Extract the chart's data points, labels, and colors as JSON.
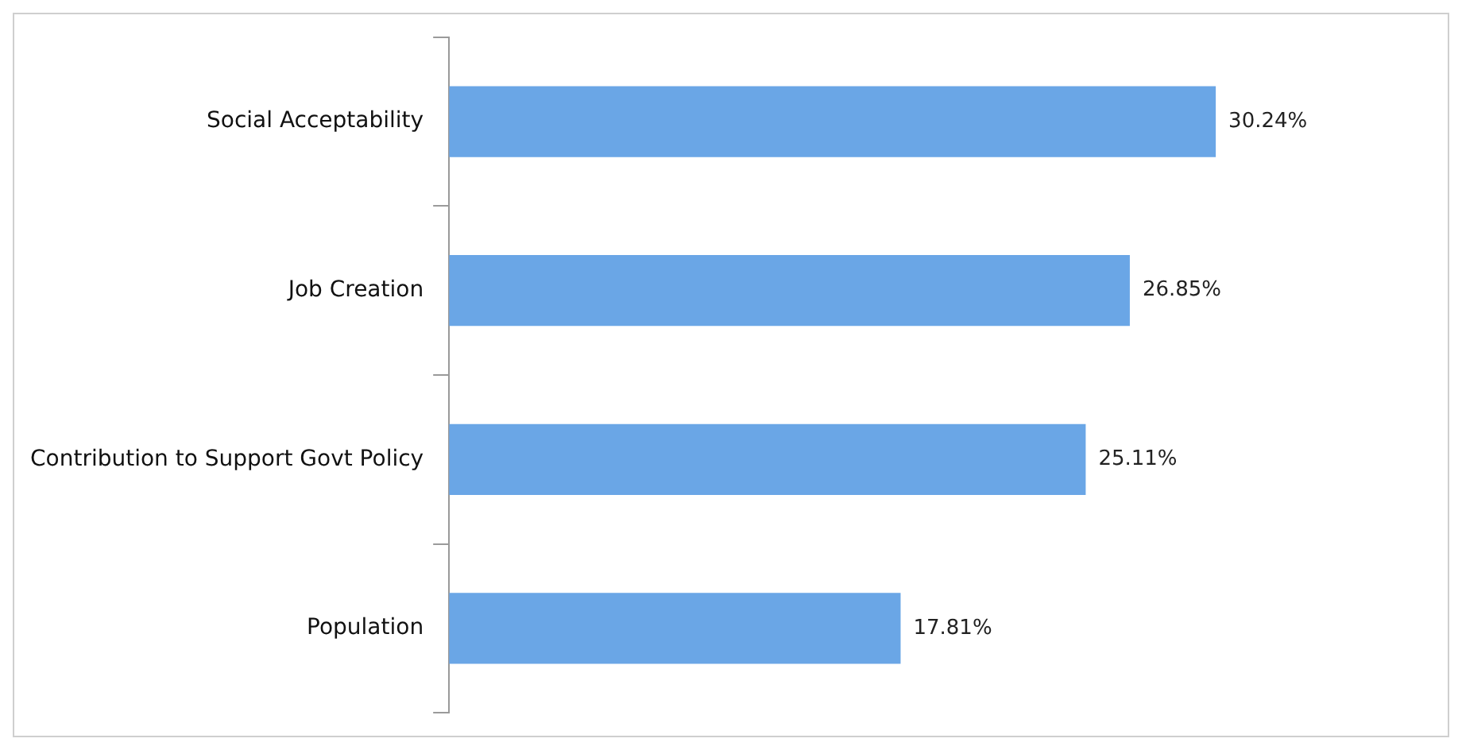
{
  "chart_data": {
    "type": "bar",
    "orientation": "horizontal",
    "categories": [
      "Social Acceptability",
      "Job Creation",
      "Contribution to Support Govt Policy",
      "Population"
    ],
    "values": [
      30.24,
      26.85,
      25.11,
      17.81
    ],
    "value_labels": [
      "30.24%",
      "26.85%",
      "25.11%",
      "17.81%"
    ],
    "color": "#6aa6e6",
    "tick_labels": "y"
  }
}
